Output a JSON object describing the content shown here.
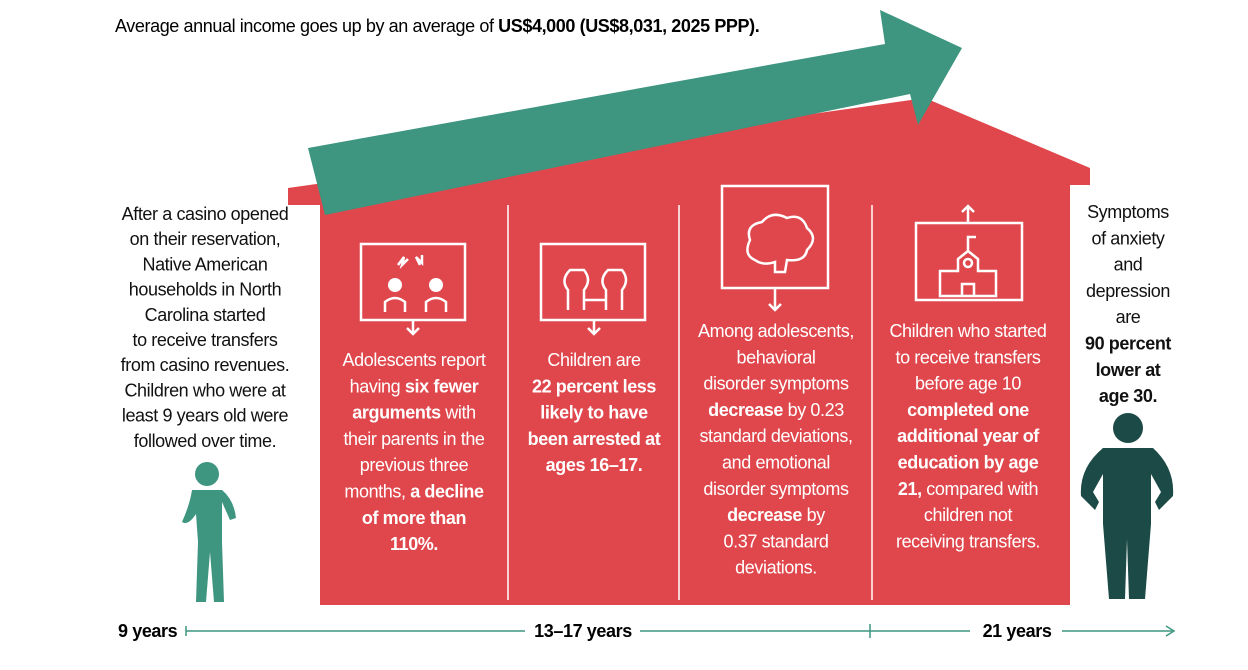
{
  "header": {
    "segments": [
      {
        "text": "Average annual income goes up by an average of ",
        "bold": false
      },
      {
        "text": "US$4,000 (US$8,031, 2025 PPP).",
        "bold": true
      }
    ]
  },
  "left_note": {
    "lines": [
      [
        {
          "text": "After a casino opened",
          "bold": false
        }
      ],
      [
        {
          "text": "on their reservation,",
          "bold": false
        }
      ],
      [
        {
          "text": "Native American",
          "bold": false
        }
      ],
      [
        {
          "text": "households in North",
          "bold": false
        }
      ],
      [
        {
          "text": "Carolina started",
          "bold": false
        }
      ],
      [
        {
          "text": "to receive transfers",
          "bold": false
        }
      ],
      [
        {
          "text": "from casino revenues.",
          "bold": false
        }
      ],
      [
        {
          "text": "Children who were at",
          "bold": false
        }
      ],
      [
        {
          "text": "least 9 years old were",
          "bold": false
        }
      ],
      [
        {
          "text": "followed over time.",
          "bold": false
        }
      ]
    ]
  },
  "panels": [
    {
      "lines": [
        [
          {
            "text": "Adolescents report",
            "bold": false
          }
        ],
        [
          {
            "text": "having ",
            "bold": false
          },
          {
            "text": "six fewer",
            "bold": true
          }
        ],
        [
          {
            "text": "arguments",
            "bold": true
          },
          {
            "text": " with",
            "bold": false
          }
        ],
        [
          {
            "text": "their parents in the",
            "bold": false
          }
        ],
        [
          {
            "text": "previous three",
            "bold": false
          }
        ],
        [
          {
            "text": "months, ",
            "bold": false
          },
          {
            "text": "a decline",
            "bold": true
          }
        ],
        [
          {
            "text": "of more than",
            "bold": true
          }
        ],
        [
          {
            "text": "110%.",
            "bold": true
          }
        ]
      ]
    },
    {
      "lines": [
        [
          {
            "text": "Children are",
            "bold": false
          }
        ],
        [
          {
            "text": "22 percent less",
            "bold": true
          }
        ],
        [
          {
            "text": "likely to have",
            "bold": true
          }
        ],
        [
          {
            "text": "been arrested at",
            "bold": true
          }
        ],
        [
          {
            "text": "ages 16–17.",
            "bold": true
          }
        ]
      ]
    },
    {
      "lines": [
        [
          {
            "text": "Among adolescents,",
            "bold": false
          }
        ],
        [
          {
            "text": "behavioral",
            "bold": false
          }
        ],
        [
          {
            "text": "disorder symptoms",
            "bold": false
          }
        ],
        [
          {
            "text": "decrease",
            "bold": true
          },
          {
            "text": " by 0.23",
            "bold": false
          }
        ],
        [
          {
            "text": "standard deviations,",
            "bold": false
          }
        ],
        [
          {
            "text": "and emotional",
            "bold": false
          }
        ],
        [
          {
            "text": "disorder symptoms",
            "bold": false
          }
        ],
        [
          {
            "text": "decrease",
            "bold": true
          },
          {
            "text": " by",
            "bold": false
          }
        ],
        [
          {
            "text": "0.37 standard",
            "bold": false
          }
        ],
        [
          {
            "text": "deviations.",
            "bold": false
          }
        ]
      ]
    },
    {
      "lines": [
        [
          {
            "text": "Children who started",
            "bold": false
          }
        ],
        [
          {
            "text": "to receive transfers",
            "bold": false
          }
        ],
        [
          {
            "text": "before age 10",
            "bold": false
          }
        ],
        [
          {
            "text": "completed one",
            "bold": true
          }
        ],
        [
          {
            "text": "additional year of",
            "bold": true
          }
        ],
        [
          {
            "text": "education by age",
            "bold": true
          }
        ],
        [
          {
            "text": "21,",
            "bold": true
          },
          {
            "text": " compared with",
            "bold": false
          }
        ],
        [
          {
            "text": "children not",
            "bold": false
          }
        ],
        [
          {
            "text": "receiving transfers.",
            "bold": false
          }
        ]
      ]
    }
  ],
  "right_note": {
    "lines": [
      [
        {
          "text": "Symptoms",
          "bold": false
        }
      ],
      [
        {
          "text": "of anxiety",
          "bold": false
        }
      ],
      [
        {
          "text": "and",
          "bold": false
        }
      ],
      [
        {
          "text": "depression",
          "bold": false
        }
      ],
      [
        {
          "text": "are",
          "bold": false
        }
      ],
      [
        {
          "text": "90 percent",
          "bold": true
        }
      ],
      [
        {
          "text": "lower at",
          "bold": true
        }
      ],
      [
        {
          "text": "age 30.",
          "bold": true
        }
      ]
    ]
  },
  "timeline": {
    "labels": [
      "9 years",
      "13–17 years",
      "21 years"
    ]
  }
}
